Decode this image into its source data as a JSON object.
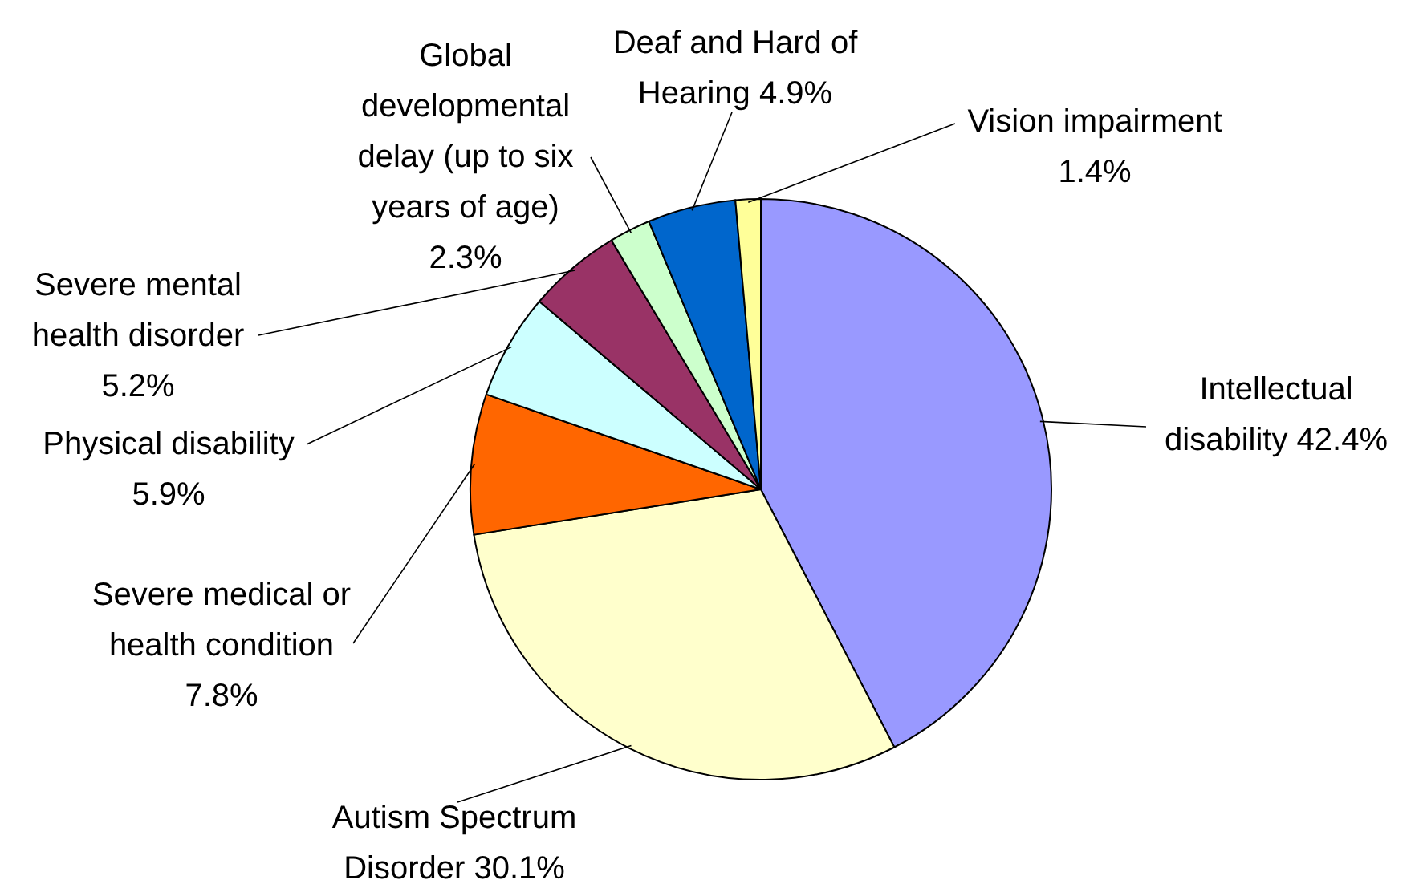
{
  "chart_data": {
    "type": "pie",
    "categories": [
      "Intellectual disability",
      "Autism Spectrum Disorder",
      "Severe medical or health condition",
      "Physical disability",
      "Severe mental health disorder",
      "Global developmental delay (up to six years of age)",
      "Deaf and Hard of Hearing",
      "Vision impairment"
    ],
    "values": [
      42.4,
      30.1,
      7.8,
      5.9,
      5.2,
      2.3,
      4.9,
      1.4
    ],
    "colors": [
      "#9999ff",
      "#ffffcc",
      "#ff6600",
      "#ccffff",
      "#993366",
      "#ccffcc",
      "#0066cc",
      "#ffff99"
    ],
    "value_labels": [
      "42.4%",
      "30.1%",
      "7.8%",
      "5.9%",
      "5.2%",
      "2.3%",
      "4.9%",
      "1.4%"
    ]
  }
}
